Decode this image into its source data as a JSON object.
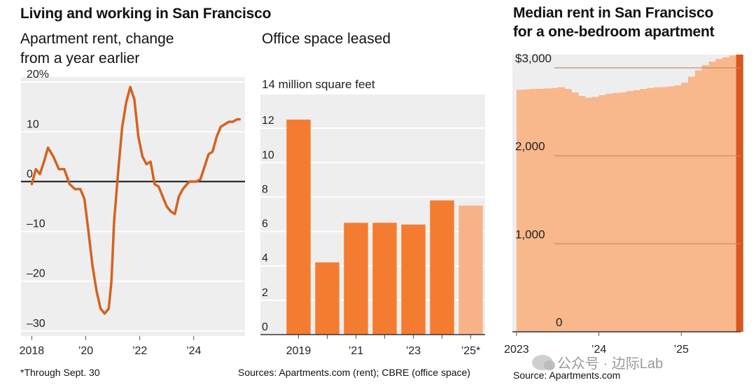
{
  "header": {
    "main_title": "Living and working in San Francisco"
  },
  "panels": {
    "rent_change": {
      "title_line1": "Apartment rent, change",
      "title_line2": "from a year earlier"
    },
    "office": {
      "title": "Office space leased"
    },
    "median_rent": {
      "title_line1": "Median rent in San Francisco",
      "title_line2": "for a one-bedroom apartment"
    }
  },
  "footer": {
    "footnote": "*Through Sept. 30",
    "sources_left": "Sources: Apartments.com (rent); CBRE (office space)",
    "sources_right": "Source: Apartments.com"
  },
  "watermark": {
    "text": "公众号 · 边际Lab"
  },
  "colors": {
    "line": "#d4621f",
    "bar": "#f47c30",
    "bar_partial": "#f7b387",
    "area": "#f8b88c",
    "area_latest": "#d9581f",
    "panel_bg": "#eeeeee",
    "grid": "#ffffff",
    "zero_line": "#111111"
  },
  "chart_data": [
    {
      "type": "line",
      "title": "Apartment rent, change from a year earlier",
      "x": [
        2018.0,
        2018.15,
        2018.3,
        2018.45,
        2018.6,
        2018.8,
        2019.0,
        2019.2,
        2019.4,
        2019.6,
        2019.8,
        2019.95,
        2020.1,
        2020.25,
        2020.4,
        2020.55,
        2020.7,
        2020.85,
        2020.95,
        2021.05,
        2021.2,
        2021.35,
        2021.5,
        2021.65,
        2021.8,
        2021.95,
        2022.1,
        2022.25,
        2022.4,
        2022.55,
        2022.7,
        2022.85,
        2023.0,
        2023.15,
        2023.3,
        2023.45,
        2023.6,
        2023.75,
        2023.85,
        2023.95,
        2024.1,
        2024.25,
        2024.4,
        2024.55,
        2024.7,
        2024.85,
        2025.0,
        2025.15,
        2025.3,
        2025.45,
        2025.6,
        2025.7
      ],
      "values": [
        -0.5,
        2.5,
        1.5,
        4.0,
        6.8,
        5.0,
        2.5,
        2.5,
        -0.5,
        -1.5,
        -1.5,
        -3.5,
        -10.0,
        -17.0,
        -22.0,
        -25.5,
        -26.5,
        -25.5,
        -20.0,
        -8.0,
        2.0,
        11.0,
        16.0,
        19.0,
        16.5,
        9.0,
        5.0,
        3.5,
        4.0,
        -0.5,
        -1.0,
        -3.0,
        -5.0,
        -6.0,
        -6.5,
        -3.0,
        -1.5,
        -0.5,
        0.0,
        0.0,
        0.0,
        0.5,
        3.0,
        5.5,
        6.0,
        9.0,
        11.0,
        11.5,
        12.0,
        12.0,
        12.5,
        12.5
      ],
      "ylim": [
        -31,
        21
      ],
      "yticks": [
        20,
        10,
        0,
        -10,
        -20,
        -30
      ],
      "ytick_labels": [
        "20%",
        "10",
        "0",
        "–10",
        "–20",
        "–30"
      ],
      "xticks": [
        2018,
        2020,
        2022,
        2024
      ],
      "xtick_labels": [
        "2018",
        "’20",
        "’22",
        "’24"
      ],
      "xlim": [
        2017.6,
        2025.9
      ]
    },
    {
      "type": "bar",
      "title": "Office space leased",
      "ylabel": "14 million square feet",
      "categories": [
        "2019",
        "2020",
        "2021",
        "2022",
        "2023",
        "2024",
        "2025"
      ],
      "xtick_labels": [
        "2019",
        "",
        "’21",
        "",
        "’23",
        "",
        "’25*"
      ],
      "values": [
        12.5,
        4.2,
        6.5,
        6.5,
        6.4,
        7.8,
        7.5
      ],
      "partial": [
        false,
        false,
        false,
        false,
        false,
        false,
        true
      ],
      "ylim": [
        0,
        14
      ],
      "yticks": [
        12,
        10,
        8,
        6,
        4,
        2,
        0
      ],
      "ytick_labels": [
        "12",
        "10",
        "8",
        "6",
        "4",
        "2",
        "0"
      ]
    },
    {
      "type": "area",
      "title": "Median rent in San Francisco for a one-bedroom apartment",
      "x_start": 2023.0,
      "x_step": 0.0833,
      "values": [
        2750,
        2755,
        2760,
        2762,
        2765,
        2770,
        2780,
        2760,
        2720,
        2680,
        2660,
        2670,
        2690,
        2705,
        2715,
        2720,
        2735,
        2745,
        2760,
        2770,
        2778,
        2780,
        2790,
        2800,
        2830,
        2900,
        2970,
        3030,
        3070,
        3100,
        3120,
        3140,
        3150
      ],
      "ylim": [
        0,
        3150
      ],
      "yticks": [
        3000,
        2000,
        1000,
        0
      ],
      "ytick_labels": [
        "$3,000",
        "2,000",
        "1,000",
        "0"
      ],
      "xticks": [
        2023,
        2024,
        2025
      ],
      "xtick_labels": [
        "2023",
        "’24",
        "’25"
      ],
      "xlim": [
        2022.95,
        2025.72
      ]
    }
  ]
}
